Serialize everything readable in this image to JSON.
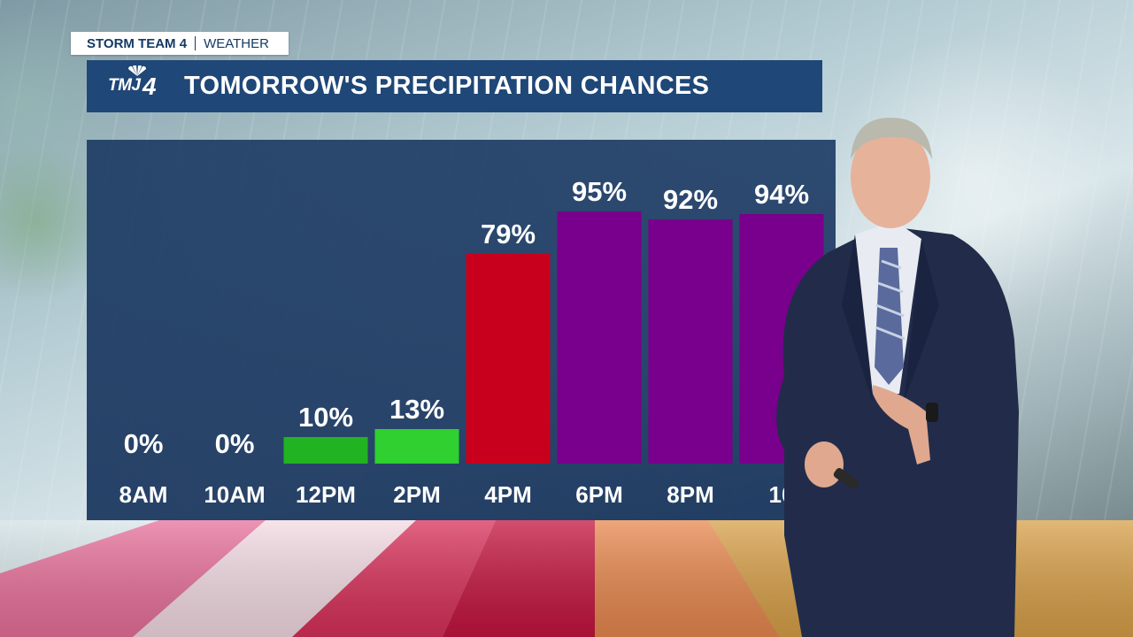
{
  "header": {
    "brand": "STORM TEAM 4",
    "section": "WEATHER"
  },
  "titlebar": {
    "logo_text": "TMJ",
    "logo_number": "4",
    "title": "TOMORROW'S PRECIPITATION CHANCES"
  },
  "colors": {
    "title_bar": "#1f4777",
    "panel": "#1c3a64",
    "low": "#22b322",
    "low_bright": "#2fd02f",
    "medium": "#c8001e",
    "high": "#78008c"
  },
  "chart_data": {
    "type": "bar",
    "title": "TOMORROW'S PRECIPITATION CHANCES",
    "categories": [
      "8AM",
      "10AM",
      "12PM",
      "2PM",
      "4PM",
      "6PM",
      "8PM",
      "10"
    ],
    "values": [
      0,
      0,
      10,
      13,
      79,
      95,
      92,
      94
    ],
    "value_labels": [
      "0%",
      "0%",
      "10%",
      "13%",
      "79%",
      "95%",
      "92%",
      "94%"
    ],
    "bar_colors": [
      "#22b322",
      "#22b322",
      "#22b322",
      "#2fd02f",
      "#c8001e",
      "#78008c",
      "#78008c",
      "#78008c"
    ],
    "ylim": [
      0,
      100
    ],
    "grid": false,
    "legend": "none"
  }
}
